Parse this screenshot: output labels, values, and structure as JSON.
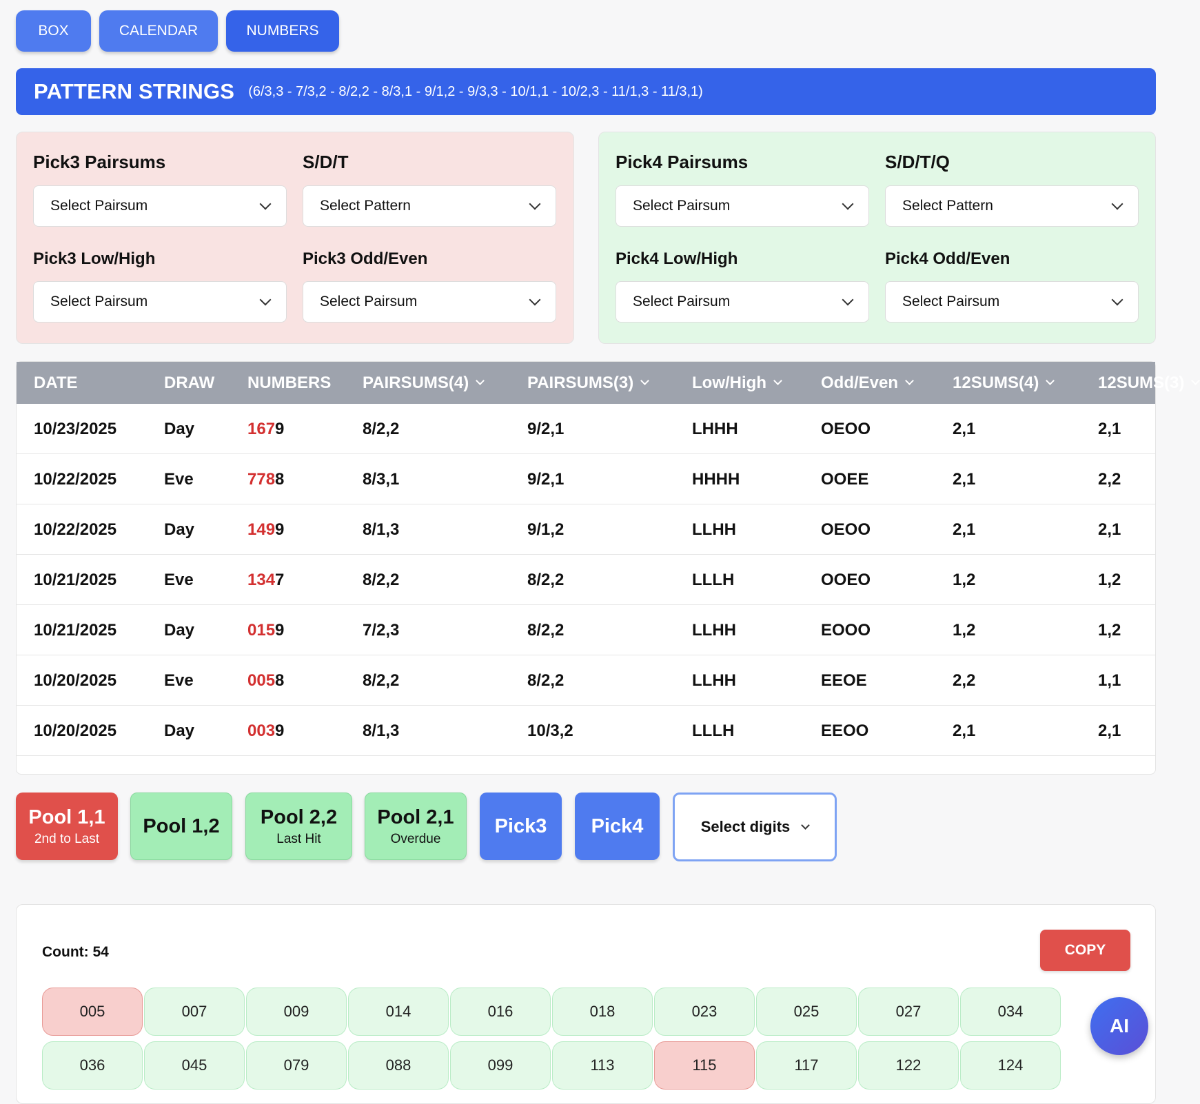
{
  "nav": {
    "box": "BOX",
    "calendar": "CALENDAR",
    "numbers": "NUMBERS"
  },
  "banner": {
    "title": "PATTERN STRINGS",
    "patterns": "(6/3,3 - 7/3,2 - 8/2,2 - 8/3,1 - 9/1,2 - 9/3,3 - 10/1,1 - 10/2,3 - 11/1,3 - 11/3,1)"
  },
  "pick3": {
    "pairsums_label": "Pick3 Pairsums",
    "pairsums_value": "Select Pairsum",
    "sdt_label": "S/D/T",
    "sdt_value": "Select Pattern",
    "lowhigh_label": "Pick3 Low/High",
    "lowhigh_value": "Select Pairsum",
    "oddeven_label": "Pick3 Odd/Even",
    "oddeven_value": "Select Pairsum"
  },
  "pick4": {
    "pairsums_label": "Pick4 Pairsums",
    "pairsums_value": "Select Pairsum",
    "sdtq_label": "S/D/T/Q",
    "sdtq_value": "Select Pattern",
    "lowhigh_label": "Pick4 Low/High",
    "lowhigh_value": "Select Pairsum",
    "oddeven_label": "Pick4 Odd/Even",
    "oddeven_value": "Select Pairsum"
  },
  "table": {
    "headers": [
      "DATE",
      "DRAW",
      "NUMBERS",
      "PAIRSUMS(4)",
      "PAIRSUMS(3)",
      "Low/High",
      "Odd/Even",
      "12SUMS(4)",
      "12SUMS(3)"
    ],
    "rows": [
      {
        "date": "10/23/2025",
        "draw": "Day",
        "num3": "167",
        "num4": "9",
        "ps4": "8/2,2",
        "ps3": "9/2,1",
        "lh": "LHHH",
        "oe": "OEOO",
        "s4": "2,1",
        "s3": "2,1"
      },
      {
        "date": "10/22/2025",
        "draw": "Eve",
        "num3": "778",
        "num4": "8",
        "ps4": "8/3,1",
        "ps3": "9/2,1",
        "lh": "HHHH",
        "oe": "OOEE",
        "s4": "2,1",
        "s3": "2,2"
      },
      {
        "date": "10/22/2025",
        "draw": "Day",
        "num3": "149",
        "num4": "9",
        "ps4": "8/1,3",
        "ps3": "9/1,2",
        "lh": "LLHH",
        "oe": "OEOO",
        "s4": "2,1",
        "s3": "2,1"
      },
      {
        "date": "10/21/2025",
        "draw": "Eve",
        "num3": "134",
        "num4": "7",
        "ps4": "8/2,2",
        "ps3": "8/2,2",
        "lh": "LLLH",
        "oe": "OOEO",
        "s4": "1,2",
        "s3": "1,2"
      },
      {
        "date": "10/21/2025",
        "draw": "Day",
        "num3": "015",
        "num4": "9",
        "ps4": "7/2,3",
        "ps3": "8/2,2",
        "lh": "LLHH",
        "oe": "EOOO",
        "s4": "1,2",
        "s3": "1,2"
      },
      {
        "date": "10/20/2025",
        "draw": "Eve",
        "num3": "005",
        "num4": "8",
        "ps4": "8/2,2",
        "ps3": "8/2,2",
        "lh": "LLHH",
        "oe": "EEOE",
        "s4": "2,2",
        "s3": "1,1"
      },
      {
        "date": "10/20/2025",
        "draw": "Day",
        "num3": "003",
        "num4": "9",
        "ps4": "8/1,3",
        "ps3": "10/3,2",
        "lh": "LLLH",
        "oe": "EEOO",
        "s4": "2,1",
        "s3": "2,1"
      }
    ]
  },
  "pools": [
    {
      "main": "Pool 1,1",
      "sub": "2nd to Last"
    },
    {
      "main": "Pool 1,2",
      "sub": ""
    },
    {
      "main": "Pool 2,2",
      "sub": "Last Hit"
    },
    {
      "main": "Pool 2,1",
      "sub": "Overdue"
    }
  ],
  "pick3_button": "Pick3",
  "pick4_button": "Pick4",
  "digits_select": "Select digits",
  "results": {
    "count": "Count: 54",
    "copy": "COPY",
    "numbers": [
      "005",
      "007",
      "009",
      "014",
      "016",
      "018",
      "023",
      "025",
      "027",
      "034",
      "036",
      "045",
      "079",
      "088",
      "099",
      "113",
      "115",
      "117",
      "122",
      "124"
    ],
    "highlighted": [
      "005",
      "115"
    ]
  },
  "ai_button": "AI",
  "colors": {
    "primary": "#3563e9",
    "accent_red": "#e0504b",
    "pool_green": "#a3edb6",
    "digit_red": "#d33030"
  }
}
